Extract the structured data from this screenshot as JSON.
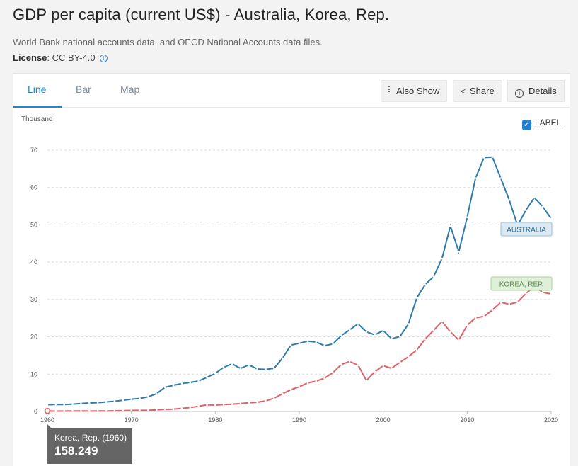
{
  "header": {
    "title": "GDP per capita (current US$) - Australia, Korea, Rep.",
    "source": "World Bank national accounts data, and OECD National Accounts data files.",
    "license_label": "License",
    "license_value": ": CC BY-4.0"
  },
  "tabs": [
    {
      "label": "Line",
      "active": true
    },
    {
      "label": "Bar",
      "active": false
    },
    {
      "label": "Map",
      "active": false
    }
  ],
  "toolbar": {
    "also_show": "Also Show",
    "share": "Share",
    "details": "Details"
  },
  "label_toggle": {
    "label": "LABEL",
    "checked": true
  },
  "tooltip": {
    "name": "Korea, Rep. (1960)",
    "value": "158.249"
  },
  "colors": {
    "australia": "#2e7bab",
    "korea": "#e06168",
    "accent": "#1f86d0"
  },
  "chart_data": {
    "type": "line",
    "title": "GDP per capita (current US$) - Australia, Korea, Rep.",
    "ylabel": "Thousand",
    "xlabel": "",
    "xlim": [
      1960,
      2021
    ],
    "ylim": [
      0,
      70
    ],
    "x_ticks": [
      1960,
      1970,
      1980,
      1990,
      2000,
      2010,
      2020
    ],
    "y_ticks": [
      0,
      10,
      20,
      30,
      40,
      50,
      60,
      70
    ],
    "grid": true,
    "legend": "inline labels at line ends",
    "x": [
      1960,
      1961,
      1962,
      1963,
      1964,
      1965,
      1966,
      1967,
      1968,
      1969,
      1970,
      1971,
      1972,
      1973,
      1974,
      1975,
      1976,
      1977,
      1978,
      1979,
      1980,
      1981,
      1982,
      1983,
      1984,
      1985,
      1986,
      1987,
      1988,
      1989,
      1990,
      1991,
      1992,
      1993,
      1994,
      1995,
      1996,
      1997,
      1998,
      1999,
      2000,
      2001,
      2002,
      2003,
      2004,
      2005,
      2006,
      2007,
      2008,
      2009,
      2010,
      2011,
      2012,
      2013,
      2014,
      2015,
      2016,
      2017,
      2018,
      2019,
      2020
    ],
    "series": [
      {
        "name": "AUSTRALIA",
        "values": [
          1.81,
          1.88,
          1.85,
          1.97,
          2.13,
          2.28,
          2.36,
          2.56,
          2.74,
          3.02,
          3.3,
          3.49,
          3.93,
          4.76,
          6.47,
          7.0,
          7.48,
          7.77,
          8.15,
          9.14,
          10.19,
          11.83,
          12.77,
          11.52,
          12.48,
          11.38,
          11.26,
          11.58,
          14.27,
          17.78,
          18.25,
          18.86,
          18.6,
          17.63,
          18.08,
          20.32,
          21.86,
          23.47,
          21.32,
          20.53,
          21.68,
          19.49,
          20.08,
          23.45,
          30.43,
          33.99,
          36.12,
          40.96,
          49.66,
          42.77,
          52.02,
          62.52,
          68.01,
          68.16,
          62.51,
          56.71,
          49.88,
          53.94,
          57.27,
          54.88,
          51.69
        ]
      },
      {
        "name": "KOREA, REP.",
        "values": [
          0.158,
          0.094,
          0.107,
          0.146,
          0.124,
          0.109,
          0.133,
          0.161,
          0.198,
          0.243,
          0.279,
          0.301,
          0.323,
          0.407,
          0.563,
          0.617,
          0.83,
          1.05,
          1.4,
          1.78,
          1.7,
          1.85,
          1.94,
          2.12,
          2.31,
          2.46,
          2.83,
          3.55,
          4.75,
          5.82,
          6.61,
          7.64,
          8.13,
          8.89,
          10.39,
          12.57,
          13.4,
          12.4,
          8.29,
          10.67,
          12.26,
          11.56,
          13.17,
          14.67,
          16.5,
          19.4,
          21.74,
          24.09,
          21.35,
          19.14,
          23.08,
          25.1,
          25.46,
          27.18,
          29.25,
          28.73,
          29.29,
          31.6,
          33.45,
          31.9,
          31.49
        ]
      }
    ]
  }
}
